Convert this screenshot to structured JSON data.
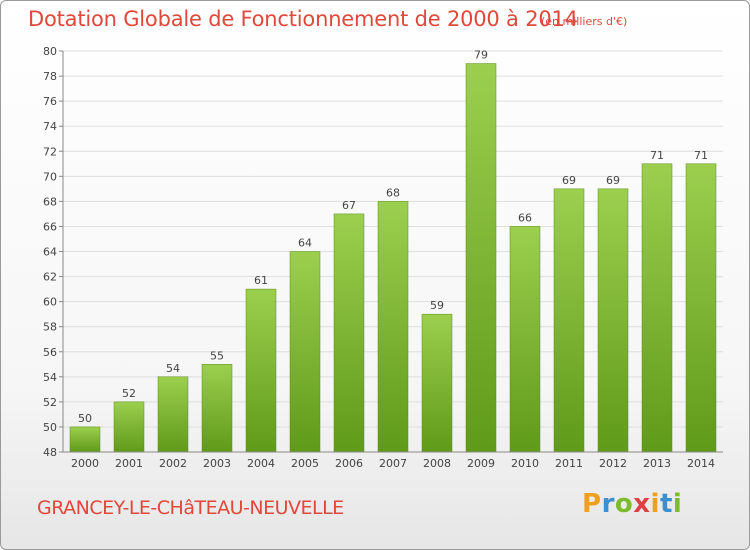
{
  "chart_data": {
    "type": "bar",
    "title": "Dotation Globale de Fonctionnement de 2000 à 2014",
    "subtitle": "(en milliers d'€)",
    "categories": [
      "2000",
      "2001",
      "2002",
      "2003",
      "2004",
      "2005",
      "2006",
      "2007",
      "2008",
      "2009",
      "2010",
      "2011",
      "2012",
      "2013",
      "2014"
    ],
    "values": [
      50,
      52,
      54,
      55,
      61,
      64,
      67,
      68,
      59,
      79,
      66,
      69,
      69,
      71,
      71
    ],
    "ylim": [
      48,
      80
    ],
    "yticks": [
      48,
      50,
      52,
      54,
      56,
      58,
      60,
      62,
      64,
      66,
      68,
      70,
      72,
      74,
      76,
      78,
      80
    ],
    "grid": true,
    "bar_color": "#7cbc2c",
    "text_color": "#e0483a"
  },
  "footer": {
    "commune": "GRANCEY-LE-CHâTEAU-NEUVELLE",
    "logo_letters": [
      "P",
      "r",
      "o",
      "x",
      "i",
      "t",
      "i"
    ],
    "logo_colors": [
      "#f0a020",
      "#3a8fd0",
      "#7cbc2c",
      "#e04040",
      "#f0a020",
      "#3a8fd0",
      "#7cbc2c"
    ]
  }
}
